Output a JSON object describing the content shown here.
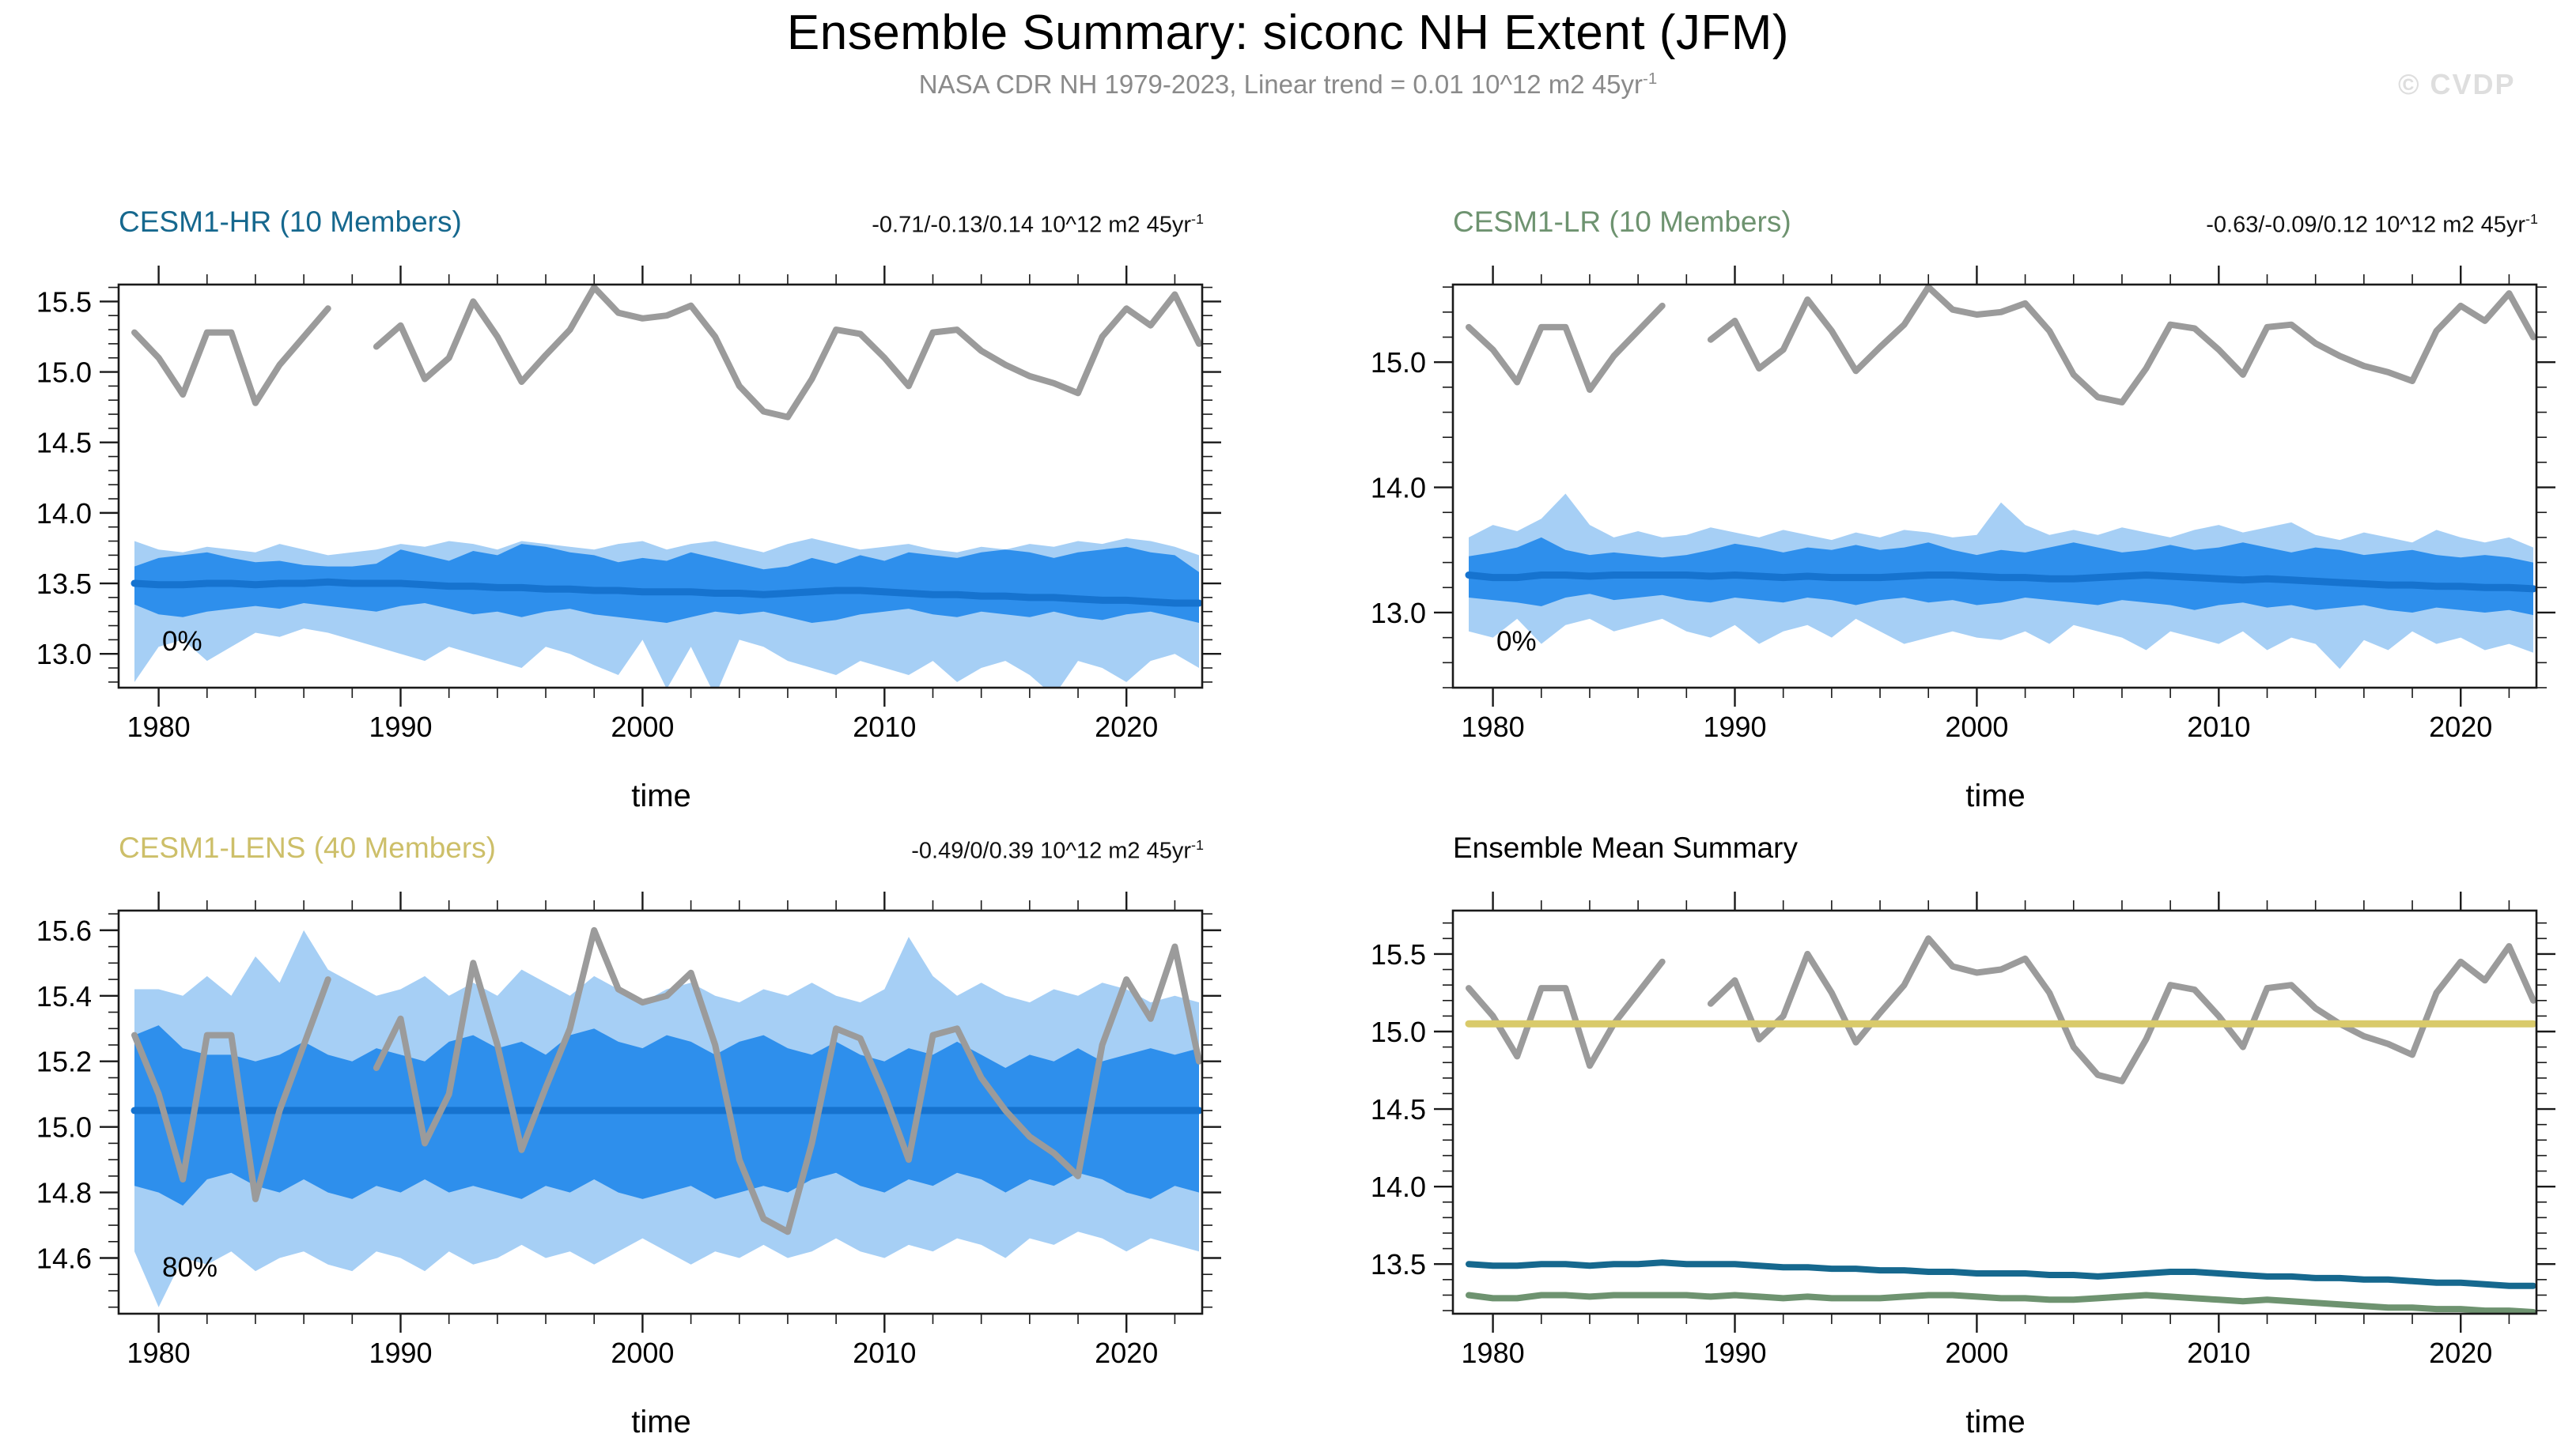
{
  "header": {
    "title": "Ensemble Summary: siconc NH Extent (JFM)",
    "subtitle": "NASA CDR NH 1979-2023, Linear trend = 0.01 10^12 m2 45yr",
    "subtitle_sup": "-1",
    "watermark": "© CVDP"
  },
  "colors": {
    "band_outer": "#a6cff5",
    "band_inner": "#2e8fec",
    "ensemble_mean_blue": "#1673cf",
    "observations_gray": "#9b9b9b",
    "hr_teal": "#16688e",
    "lr_green": "#6e9370",
    "lens_khaki": "#cdbf69",
    "summary_yellow": "#d9ca6a",
    "axis": "#1a1a1a"
  },
  "chart_data": {
    "type": "line",
    "units": "10^12 m2",
    "x": {
      "start_year": 1979,
      "end_year": 2023,
      "tick_years": [
        1980,
        1990,
        2000,
        2010,
        2020
      ],
      "tick_labels": [
        "1980",
        "1990",
        "2000",
        "2010",
        "2020"
      ],
      "minor_step_years": 2,
      "axis_label": "time"
    },
    "series_store": {
      "obs": [
        15.28,
        15.1,
        14.84,
        15.28,
        15.28,
        14.78,
        15.05,
        15.25,
        15.45,
        null,
        15.18,
        15.33,
        14.95,
        15.1,
        15.5,
        15.25,
        14.93,
        15.12,
        15.3,
        15.6,
        15.42,
        15.38,
        15.4,
        15.47,
        15.25,
        14.9,
        14.72,
        14.68,
        14.95,
        15.3,
        15.27,
        15.1,
        14.9,
        15.28,
        15.3,
        15.15,
        15.05,
        14.97,
        14.92,
        14.85,
        15.25,
        15.45,
        15.33,
        15.55,
        15.2
      ],
      "hr_mean": [
        13.5,
        13.49,
        13.49,
        13.5,
        13.5,
        13.49,
        13.5,
        13.5,
        13.51,
        13.5,
        13.5,
        13.5,
        13.49,
        13.48,
        13.48,
        13.47,
        13.47,
        13.46,
        13.46,
        13.45,
        13.45,
        13.44,
        13.44,
        13.44,
        13.43,
        13.43,
        13.42,
        13.43,
        13.44,
        13.45,
        13.45,
        13.44,
        13.43,
        13.42,
        13.42,
        13.41,
        13.41,
        13.4,
        13.4,
        13.39,
        13.38,
        13.38,
        13.37,
        13.36,
        13.36
      ],
      "hr_inner_hi": [
        13.62,
        13.68,
        13.7,
        13.72,
        13.68,
        13.65,
        13.66,
        13.63,
        13.62,
        13.62,
        13.64,
        13.74,
        13.7,
        13.66,
        13.73,
        13.7,
        13.78,
        13.76,
        13.72,
        13.7,
        13.65,
        13.68,
        13.66,
        13.72,
        13.68,
        13.64,
        13.6,
        13.62,
        13.68,
        13.64,
        13.7,
        13.66,
        13.72,
        13.7,
        13.68,
        13.72,
        13.74,
        13.72,
        13.68,
        13.72,
        13.74,
        13.76,
        13.72,
        13.7,
        13.58
      ],
      "hr_inner_lo": [
        13.35,
        13.28,
        13.26,
        13.3,
        13.32,
        13.34,
        13.32,
        13.36,
        13.34,
        13.32,
        13.3,
        13.34,
        13.36,
        13.32,
        13.28,
        13.3,
        13.26,
        13.3,
        13.32,
        13.28,
        13.26,
        13.24,
        13.22,
        13.26,
        13.3,
        13.28,
        13.3,
        13.26,
        13.22,
        13.24,
        13.28,
        13.3,
        13.32,
        13.28,
        13.26,
        13.3,
        13.28,
        13.26,
        13.3,
        13.26,
        13.24,
        13.28,
        13.3,
        13.26,
        13.22
      ],
      "hr_outer_hi": [
        13.8,
        13.74,
        13.72,
        13.76,
        13.74,
        13.72,
        13.78,
        13.74,
        13.7,
        13.72,
        13.74,
        13.78,
        13.76,
        13.8,
        13.78,
        13.74,
        13.8,
        13.78,
        13.76,
        13.74,
        13.78,
        13.8,
        13.74,
        13.78,
        13.8,
        13.76,
        13.72,
        13.78,
        13.82,
        13.78,
        13.74,
        13.76,
        13.78,
        13.74,
        13.72,
        13.76,
        13.74,
        13.78,
        13.76,
        13.8,
        13.78,
        13.82,
        13.8,
        13.76,
        13.7
      ],
      "hr_outer_lo": [
        12.8,
        13.05,
        13.1,
        12.95,
        13.05,
        13.15,
        13.12,
        13.18,
        13.15,
        13.1,
        13.05,
        13.0,
        12.95,
        13.05,
        13.0,
        12.95,
        12.9,
        13.05,
        13.0,
        12.92,
        12.85,
        13.1,
        12.75,
        13.05,
        12.7,
        13.1,
        13.05,
        12.95,
        12.9,
        12.85,
        12.95,
        12.9,
        12.85,
        12.95,
        12.8,
        12.9,
        12.95,
        12.85,
        12.7,
        12.95,
        12.9,
        12.8,
        12.95,
        13.0,
        12.9
      ],
      "lr_mean": [
        13.3,
        13.28,
        13.28,
        13.3,
        13.3,
        13.29,
        13.3,
        13.3,
        13.3,
        13.3,
        13.29,
        13.3,
        13.29,
        13.28,
        13.29,
        13.28,
        13.28,
        13.28,
        13.29,
        13.3,
        13.3,
        13.29,
        13.28,
        13.28,
        13.27,
        13.27,
        13.28,
        13.29,
        13.3,
        13.29,
        13.28,
        13.27,
        13.26,
        13.27,
        13.26,
        13.25,
        13.24,
        13.23,
        13.22,
        13.22,
        13.21,
        13.21,
        13.2,
        13.2,
        13.19
      ],
      "lr_inner_hi": [
        13.45,
        13.48,
        13.52,
        13.6,
        13.5,
        13.46,
        13.48,
        13.46,
        13.44,
        13.46,
        13.5,
        13.55,
        13.52,
        13.48,
        13.52,
        13.5,
        13.54,
        13.5,
        13.52,
        13.56,
        13.5,
        13.46,
        13.5,
        13.48,
        13.52,
        13.56,
        13.52,
        13.48,
        13.5,
        13.54,
        13.5,
        13.52,
        13.56,
        13.52,
        13.48,
        13.52,
        13.5,
        13.46,
        13.48,
        13.5,
        13.46,
        13.44,
        13.46,
        13.44,
        13.4
      ],
      "lr_inner_lo": [
        13.12,
        13.1,
        13.08,
        13.05,
        13.12,
        13.15,
        13.1,
        13.12,
        13.14,
        13.1,
        13.08,
        13.12,
        13.1,
        13.08,
        13.12,
        13.1,
        13.06,
        13.1,
        13.12,
        13.08,
        13.1,
        13.06,
        13.08,
        13.12,
        13.1,
        13.08,
        13.06,
        13.1,
        13.08,
        13.06,
        13.02,
        13.06,
        13.08,
        13.04,
        13.06,
        13.02,
        13.04,
        13.06,
        13.02,
        13.0,
        13.04,
        13.02,
        13.0,
        13.02,
        12.98
      ],
      "lr_outer_hi": [
        13.6,
        13.7,
        13.65,
        13.75,
        13.95,
        13.7,
        13.6,
        13.65,
        13.6,
        13.62,
        13.68,
        13.64,
        13.6,
        13.66,
        13.62,
        13.58,
        13.64,
        13.6,
        13.66,
        13.64,
        13.6,
        13.62,
        13.88,
        13.7,
        13.62,
        13.66,
        13.62,
        13.68,
        13.64,
        13.6,
        13.66,
        13.7,
        13.64,
        13.68,
        13.72,
        13.62,
        13.58,
        13.64,
        13.6,
        13.56,
        13.66,
        13.6,
        13.56,
        13.6,
        13.52
      ],
      "lr_outer_lo": [
        12.85,
        12.8,
        12.95,
        12.75,
        12.9,
        12.95,
        12.85,
        12.9,
        12.95,
        12.85,
        12.8,
        12.9,
        12.75,
        12.85,
        12.9,
        12.8,
        12.95,
        12.85,
        12.75,
        12.8,
        12.85,
        12.8,
        12.78,
        12.85,
        12.75,
        12.9,
        12.85,
        12.8,
        12.7,
        12.85,
        12.8,
        12.75,
        12.85,
        12.7,
        12.8,
        12.75,
        12.55,
        12.78,
        12.7,
        12.85,
        12.75,
        12.8,
        12.7,
        12.75,
        12.68
      ],
      "lens_mean": [
        15.05,
        15.05,
        15.05,
        15.05,
        15.05,
        15.05,
        15.05,
        15.05,
        15.05,
        15.05,
        15.05,
        15.05,
        15.05,
        15.05,
        15.05,
        15.05,
        15.05,
        15.05,
        15.05,
        15.05,
        15.05,
        15.05,
        15.05,
        15.05,
        15.05,
        15.05,
        15.05,
        15.05,
        15.05,
        15.05,
        15.05,
        15.05,
        15.05,
        15.05,
        15.05,
        15.05,
        15.05,
        15.05,
        15.05,
        15.05,
        15.05,
        15.05,
        15.05,
        15.05,
        15.05
      ],
      "lens_inner_hi": [
        15.28,
        15.31,
        15.24,
        15.22,
        15.22,
        15.2,
        15.22,
        15.26,
        15.22,
        15.2,
        15.24,
        15.22,
        15.2,
        15.26,
        15.28,
        15.24,
        15.26,
        15.22,
        15.28,
        15.3,
        15.26,
        15.24,
        15.28,
        15.26,
        15.22,
        15.26,
        15.28,
        15.24,
        15.22,
        15.26,
        15.22,
        15.2,
        15.24,
        15.22,
        15.26,
        15.22,
        15.18,
        15.22,
        15.2,
        15.24,
        15.2,
        15.22,
        15.24,
        15.22,
        15.24
      ],
      "lens_inner_lo": [
        14.82,
        14.8,
        14.76,
        14.84,
        14.86,
        14.82,
        14.8,
        14.84,
        14.8,
        14.78,
        14.82,
        14.8,
        14.84,
        14.8,
        14.82,
        14.8,
        14.78,
        14.82,
        14.8,
        14.84,
        14.8,
        14.78,
        14.8,
        14.82,
        14.78,
        14.8,
        14.82,
        14.8,
        14.84,
        14.86,
        14.82,
        14.8,
        14.84,
        14.82,
        14.86,
        14.84,
        14.8,
        14.84,
        14.82,
        14.86,
        14.84,
        14.8,
        14.78,
        14.82,
        14.8
      ],
      "lens_outer_hi": [
        15.42,
        15.42,
        15.4,
        15.46,
        15.4,
        15.52,
        15.44,
        15.6,
        15.48,
        15.44,
        15.4,
        15.42,
        15.46,
        15.4,
        15.44,
        15.4,
        15.48,
        15.44,
        15.4,
        15.46,
        15.42,
        15.38,
        15.42,
        15.44,
        15.4,
        15.38,
        15.42,
        15.4,
        15.44,
        15.4,
        15.38,
        15.42,
        15.58,
        15.46,
        15.4,
        15.44,
        15.4,
        15.38,
        15.42,
        15.4,
        15.44,
        15.42,
        15.38,
        15.4,
        15.38
      ],
      "lens_outer_lo": [
        14.62,
        14.45,
        14.6,
        14.58,
        14.62,
        14.56,
        14.6,
        14.62,
        14.58,
        14.56,
        14.62,
        14.6,
        14.56,
        14.62,
        14.58,
        14.6,
        14.64,
        14.6,
        14.62,
        14.58,
        14.62,
        14.66,
        14.62,
        14.58,
        14.62,
        14.6,
        14.64,
        14.6,
        14.62,
        14.66,
        14.62,
        14.6,
        14.64,
        14.62,
        14.66,
        14.64,
        14.6,
        14.66,
        14.64,
        14.68,
        14.66,
        14.62,
        14.66,
        14.64,
        14.62
      ]
    },
    "panels": [
      {
        "id": "hr",
        "title": "CESM1-HR (10 Members)",
        "title_color": "#16688e",
        "trend": "-0.71/-0.13/0.14 10^12 m2 45yr",
        "trend_sup": "-1",
        "pct": "0%",
        "xlabel": "time",
        "ylim": [
          12.76,
          15.62
        ],
        "yticks": [
          13.0,
          13.5,
          14.0,
          14.5,
          15.0,
          15.5
        ],
        "ytick_labels": [
          "13.0",
          "13.5",
          "14.0",
          "14.5",
          "15.0",
          "15.5"
        ],
        "yminor": 0.1,
        "layers": [
          {
            "kind": "band",
            "name": "ensemble-min-max",
            "hi": "hr_outer_hi",
            "lo": "hr_outer_lo",
            "color": "#a6cff5"
          },
          {
            "kind": "band",
            "name": "ensemble-spread",
            "hi": "hr_inner_hi",
            "lo": "hr_inner_lo",
            "color": "#2e8fec"
          },
          {
            "kind": "line",
            "name": "ensemble-mean",
            "y": "hr_mean",
            "color": "#1673cf",
            "width": 9
          },
          {
            "kind": "line",
            "name": "observations",
            "y": "obs",
            "color": "#9b9b9b",
            "width": 8
          }
        ]
      },
      {
        "id": "lr",
        "title": "CESM1-LR (10 Members)",
        "title_color": "#6e9370",
        "trend": "-0.63/-0.09/0.12 10^12 m2 45yr",
        "trend_sup": "-1",
        "pct": "0%",
        "xlabel": "time",
        "ylim": [
          12.4,
          15.62
        ],
        "yticks": [
          13.0,
          14.0,
          15.0
        ],
        "ytick_labels": [
          "13.0",
          "14.0",
          "15.0"
        ],
        "yminor": 0.2,
        "layers": [
          {
            "kind": "band",
            "name": "ensemble-min-max",
            "hi": "lr_outer_hi",
            "lo": "lr_outer_lo",
            "color": "#a6cff5"
          },
          {
            "kind": "band",
            "name": "ensemble-spread",
            "hi": "lr_inner_hi",
            "lo": "lr_inner_lo",
            "color": "#2e8fec"
          },
          {
            "kind": "line",
            "name": "ensemble-mean",
            "y": "lr_mean",
            "color": "#1673cf",
            "width": 9
          },
          {
            "kind": "line",
            "name": "observations",
            "y": "obs",
            "color": "#9b9b9b",
            "width": 8
          }
        ]
      },
      {
        "id": "lens",
        "title": "CESM1-LENS (40 Members)",
        "title_color": "#cdbf69",
        "trend": "-0.49/0/0.39 10^12 m2 45yr",
        "trend_sup": "-1",
        "pct": "80%",
        "xlabel": "time",
        "ylim": [
          14.43,
          15.66
        ],
        "yticks": [
          14.6,
          14.8,
          15.0,
          15.2,
          15.4,
          15.6
        ],
        "ytick_labels": [
          "14.6",
          "14.8",
          "15.0",
          "15.2",
          "15.4",
          "15.6"
        ],
        "yminor": 0.05,
        "layers": [
          {
            "kind": "band",
            "name": "ensemble-min-max",
            "hi": "lens_outer_hi",
            "lo": "lens_outer_lo",
            "color": "#a6cff5"
          },
          {
            "kind": "band",
            "name": "ensemble-spread",
            "hi": "lens_inner_hi",
            "lo": "lens_inner_lo",
            "color": "#2e8fec"
          },
          {
            "kind": "line",
            "name": "ensemble-mean",
            "y": "lens_mean",
            "color": "#1673cf",
            "width": 9
          },
          {
            "kind": "line",
            "name": "observations",
            "y": "obs",
            "color": "#9b9b9b",
            "width": 8
          }
        ]
      },
      {
        "id": "summary",
        "title": "Ensemble Mean Summary",
        "title_color": "#000000",
        "trend": "",
        "trend_sup": "",
        "pct": "",
        "xlabel": "time",
        "ylim": [
          13.18,
          15.78
        ],
        "yticks": [
          13.5,
          14.0,
          14.5,
          15.0,
          15.5
        ],
        "ytick_labels": [
          "13.5",
          "14.0",
          "14.5",
          "15.0",
          "15.5"
        ],
        "yminor": 0.1,
        "layers": [
          {
            "kind": "line",
            "name": "observations",
            "y": "obs",
            "color": "#9b9b9b",
            "width": 8
          },
          {
            "kind": "line",
            "name": "cesm1-lens-mean",
            "y": "lens_mean",
            "color": "#d9ca6a",
            "width": 9
          },
          {
            "kind": "line",
            "name": "cesm1-hr-mean",
            "y": "hr_mean",
            "color": "#16688e",
            "width": 8
          },
          {
            "kind": "line",
            "name": "cesm1-lr-mean",
            "y": "lr_mean",
            "color": "#6e9370",
            "width": 8
          }
        ]
      }
    ]
  }
}
